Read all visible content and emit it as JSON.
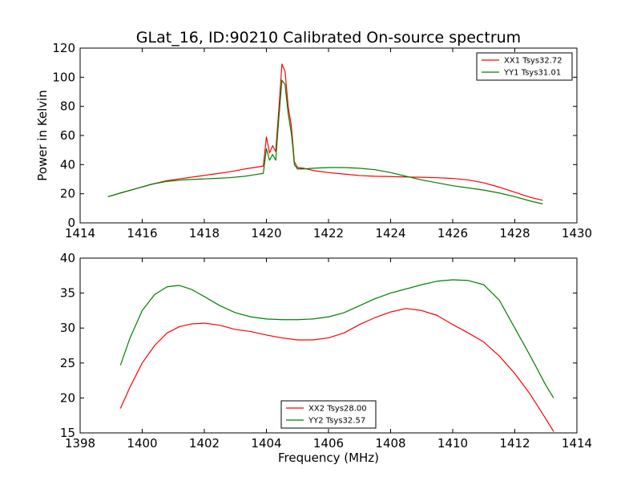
{
  "figure": {
    "title": "GLat_16, ID:90210 Calibrated On-source spectrum"
  },
  "chart_data": [
    {
      "type": "line",
      "title": "GLat_16, ID:90210 Calibrated On-source spectrum",
      "xlabel": "",
      "ylabel": "Power in Kelvin",
      "xlim": [
        1414,
        1430
      ],
      "ylim": [
        0,
        120
      ],
      "xticks": [
        1414,
        1416,
        1418,
        1420,
        1422,
        1424,
        1426,
        1428,
        1430
      ],
      "yticks": [
        0,
        20,
        40,
        60,
        80,
        100,
        120
      ],
      "grid": false,
      "legend_position": "top-right",
      "series": [
        {
          "name": "XX1 Tsys32.72",
          "color": "#ff0000",
          "x": [
            1414.9,
            1415.3,
            1415.8,
            1416.3,
            1416.8,
            1417.3,
            1417.8,
            1418.3,
            1418.8,
            1419.3,
            1419.6,
            1419.9,
            1420.0,
            1420.1,
            1420.2,
            1420.3,
            1420.4,
            1420.5,
            1420.6,
            1420.7,
            1420.8,
            1420.85,
            1420.9,
            1421.0,
            1421.2,
            1421.5,
            1422.0,
            1422.5,
            1423.0,
            1423.5,
            1424.0,
            1424.5,
            1425.0,
            1425.5,
            1426.0,
            1426.5,
            1427.0,
            1427.5,
            1428.0,
            1428.5,
            1428.9
          ],
          "values": [
            18,
            20.5,
            23.5,
            26.5,
            29,
            30.5,
            32,
            33.5,
            35,
            37,
            38,
            39,
            59,
            48,
            53,
            49,
            78,
            109,
            104,
            80,
            67,
            55,
            42,
            38,
            37.5,
            36,
            34.5,
            33.5,
            32.5,
            32,
            31.8,
            31.5,
            31.3,
            31,
            30.5,
            29.5,
            27.5,
            24.5,
            21,
            17.5,
            15.5
          ]
        },
        {
          "name": "YY1 Tsys31.01",
          "color": "#008000",
          "x": [
            1414.9,
            1415.3,
            1415.8,
            1416.3,
            1416.8,
            1417.3,
            1417.8,
            1418.3,
            1418.8,
            1419.3,
            1419.6,
            1419.9,
            1420.0,
            1420.1,
            1420.2,
            1420.3,
            1420.4,
            1420.5,
            1420.6,
            1420.7,
            1420.8,
            1420.85,
            1420.9,
            1421.0,
            1421.2,
            1421.5,
            1422.0,
            1422.5,
            1423.0,
            1423.5,
            1424.0,
            1424.5,
            1425.0,
            1425.5,
            1426.0,
            1426.5,
            1427.0,
            1427.5,
            1428.0,
            1428.5,
            1428.9
          ],
          "values": [
            18,
            20.5,
            23.5,
            26.5,
            28.5,
            29.5,
            30,
            30.5,
            31,
            32,
            33,
            34,
            51,
            43,
            47,
            43,
            72,
            98,
            95,
            75,
            62,
            52,
            40,
            37,
            37,
            37.5,
            38,
            38,
            37.5,
            36.5,
            34.5,
            32,
            29.5,
            27.5,
            25.5,
            24,
            22.5,
            20.5,
            18,
            15,
            13
          ]
        }
      ]
    },
    {
      "type": "line",
      "title": "",
      "xlabel": "Frequency (MHz)",
      "ylabel": "",
      "xlim": [
        1398,
        1414
      ],
      "ylim": [
        15,
        40
      ],
      "xticks": [
        1398,
        1400,
        1402,
        1404,
        1406,
        1408,
        1410,
        1412,
        1414
      ],
      "yticks": [
        15,
        20,
        25,
        30,
        35,
        40
      ],
      "grid": false,
      "legend_position": "bottom-center",
      "series": [
        {
          "name": "XX2 Tsys28.00",
          "color": "#ff0000",
          "x": [
            1399.3,
            1399.6,
            1400.0,
            1400.4,
            1400.8,
            1401.2,
            1401.6,
            1402.0,
            1402.5,
            1403.0,
            1403.5,
            1404.0,
            1404.5,
            1405.0,
            1405.5,
            1406.0,
            1406.5,
            1407.0,
            1407.5,
            1408.0,
            1408.5,
            1409.0,
            1409.5,
            1410.0,
            1410.5,
            1411.0,
            1411.5,
            1412.0,
            1412.5,
            1413.0,
            1413.25
          ],
          "values": [
            18.5,
            21.5,
            25,
            27.5,
            29.3,
            30.2,
            30.6,
            30.7,
            30.4,
            29.8,
            29.5,
            29,
            28.6,
            28.3,
            28.3,
            28.6,
            29.3,
            30.5,
            31.5,
            32.3,
            32.8,
            32.5,
            31.8,
            30.5,
            29.3,
            28,
            26,
            23.5,
            20.5,
            17,
            15.2
          ]
        },
        {
          "name": "YY2 Tsys32.57",
          "color": "#008000",
          "x": [
            1399.3,
            1399.6,
            1400.0,
            1400.4,
            1400.8,
            1401.2,
            1401.6,
            1402.0,
            1402.5,
            1403.0,
            1403.5,
            1404.0,
            1404.5,
            1405.0,
            1405.5,
            1406.0,
            1406.5,
            1407.0,
            1407.5,
            1408.0,
            1408.5,
            1409.0,
            1409.5,
            1410.0,
            1410.5,
            1411.0,
            1411.5,
            1412.0,
            1412.5,
            1413.0,
            1413.25
          ],
          "values": [
            24.7,
            28.5,
            32.5,
            34.8,
            35.9,
            36.1,
            35.5,
            34.5,
            33.2,
            32.2,
            31.6,
            31.3,
            31.2,
            31.2,
            31.3,
            31.6,
            32.2,
            33.2,
            34.2,
            35,
            35.6,
            36.2,
            36.7,
            36.9,
            36.8,
            36.2,
            34,
            30,
            26,
            21.8,
            20
          ]
        }
      ]
    }
  ]
}
